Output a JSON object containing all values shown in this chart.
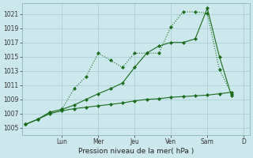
{
  "background_color": "#cce8ec",
  "grid_color": "#aacfd4",
  "line_color": "#1a6b1a",
  "title": "Pression niveau de la mer( hPa )",
  "ylabel_ticks": [
    1005,
    1007,
    1009,
    1011,
    1013,
    1015,
    1017,
    1019,
    1021
  ],
  "ylim": [
    1004.0,
    1022.5
  ],
  "xlim": [
    -0.3,
    18.5
  ],
  "day_labels": [
    "Lun",
    "Mer",
    "Jeu",
    "Ven",
    "Sam",
    "D"
  ],
  "day_positions": [
    3,
    6,
    9,
    12,
    15,
    18
  ],
  "series1_x": [
    0,
    1,
    2,
    3,
    4,
    5,
    6,
    7,
    8,
    9,
    10,
    11,
    12,
    13,
    14,
    15,
    16,
    17
  ],
  "series1_y": [
    1005.5,
    1006.2,
    1007.2,
    1007.6,
    1010.5,
    1012.2,
    1015.5,
    1014.5,
    1013.5,
    1015.5,
    1015.5,
    1015.5,
    1019.2,
    1021.3,
    1021.3,
    1021.1,
    1013.2,
    1009.8
  ],
  "series2_x": [
    0,
    1,
    2,
    3,
    4,
    5,
    6,
    7,
    8,
    9,
    10,
    11,
    12,
    13,
    14,
    15,
    16,
    17
  ],
  "series2_y": [
    1005.5,
    1006.2,
    1007.2,
    1007.6,
    1008.2,
    1009.0,
    1009.8,
    1010.5,
    1011.3,
    1013.5,
    1015.5,
    1016.5,
    1017.0,
    1017.0,
    1017.5,
    1021.8,
    1015.0,
    1009.5
  ],
  "series3_x": [
    0,
    1,
    2,
    3,
    4,
    5,
    6,
    7,
    8,
    9,
    10,
    11,
    12,
    13,
    14,
    15,
    16,
    17
  ],
  "series3_y": [
    1005.5,
    1006.2,
    1007.0,
    1007.4,
    1007.7,
    1007.9,
    1008.1,
    1008.3,
    1008.5,
    1008.8,
    1009.0,
    1009.1,
    1009.3,
    1009.4,
    1009.5,
    1009.6,
    1009.8,
    1010.0
  ]
}
